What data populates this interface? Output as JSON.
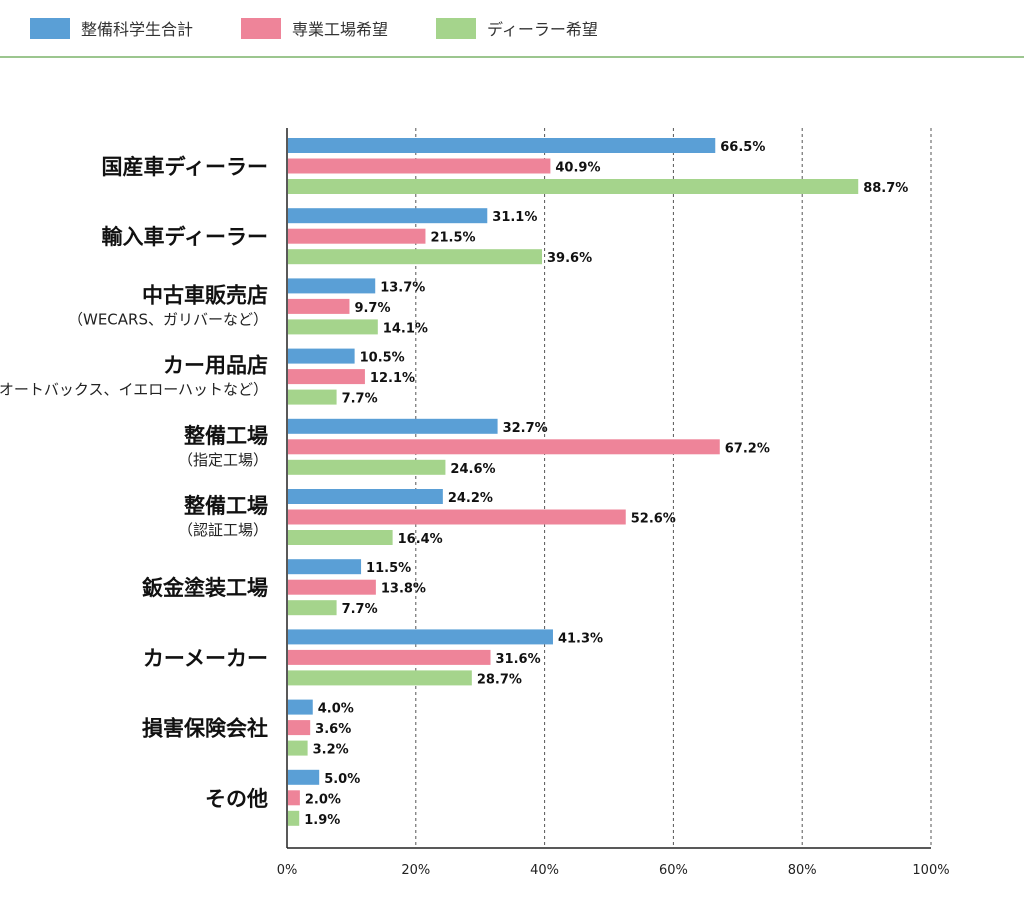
{
  "chart_data": {
    "type": "bar",
    "orientation": "horizontal",
    "legend": {
      "position": "top-left"
    },
    "colors": [
      "#5a9fd6",
      "#ee8499",
      "#a5d48c"
    ],
    "categories": [
      {
        "main": "国産車ディーラー",
        "sub": ""
      },
      {
        "main": "輸入車ディーラー",
        "sub": ""
      },
      {
        "main": "中古車販売店",
        "sub": "（WECARS、ガリバーなど）"
      },
      {
        "main": "カー用品店",
        "sub": "（オートバックス、イエローハットなど）"
      },
      {
        "main": "整備工場",
        "sub": "（指定工場）"
      },
      {
        "main": "整備工場",
        "sub": "（認証工場）"
      },
      {
        "main": "鈑金塗装工場",
        "sub": ""
      },
      {
        "main": "カーメーカー",
        "sub": ""
      },
      {
        "main": "損害保険会社",
        "sub": ""
      },
      {
        "main": "その他",
        "sub": ""
      }
    ],
    "series": [
      {
        "name": "整備科学生合計",
        "values": [
          66.5,
          31.1,
          13.7,
          10.5,
          32.7,
          24.2,
          11.5,
          41.3,
          4.0,
          5.0
        ]
      },
      {
        "name": "専業工場希望",
        "values": [
          40.9,
          21.5,
          9.7,
          12.1,
          67.2,
          52.6,
          13.8,
          31.6,
          3.6,
          2.0
        ]
      },
      {
        "name": "ディーラー希望",
        "values": [
          88.7,
          39.6,
          14.1,
          7.7,
          24.6,
          16.4,
          7.7,
          28.7,
          3.2,
          1.9
        ]
      }
    ],
    "xlim": [
      0,
      100
    ],
    "xticks": [
      0,
      20,
      40,
      60,
      80,
      100
    ],
    "tick_suffix": "%",
    "grid": true
  }
}
